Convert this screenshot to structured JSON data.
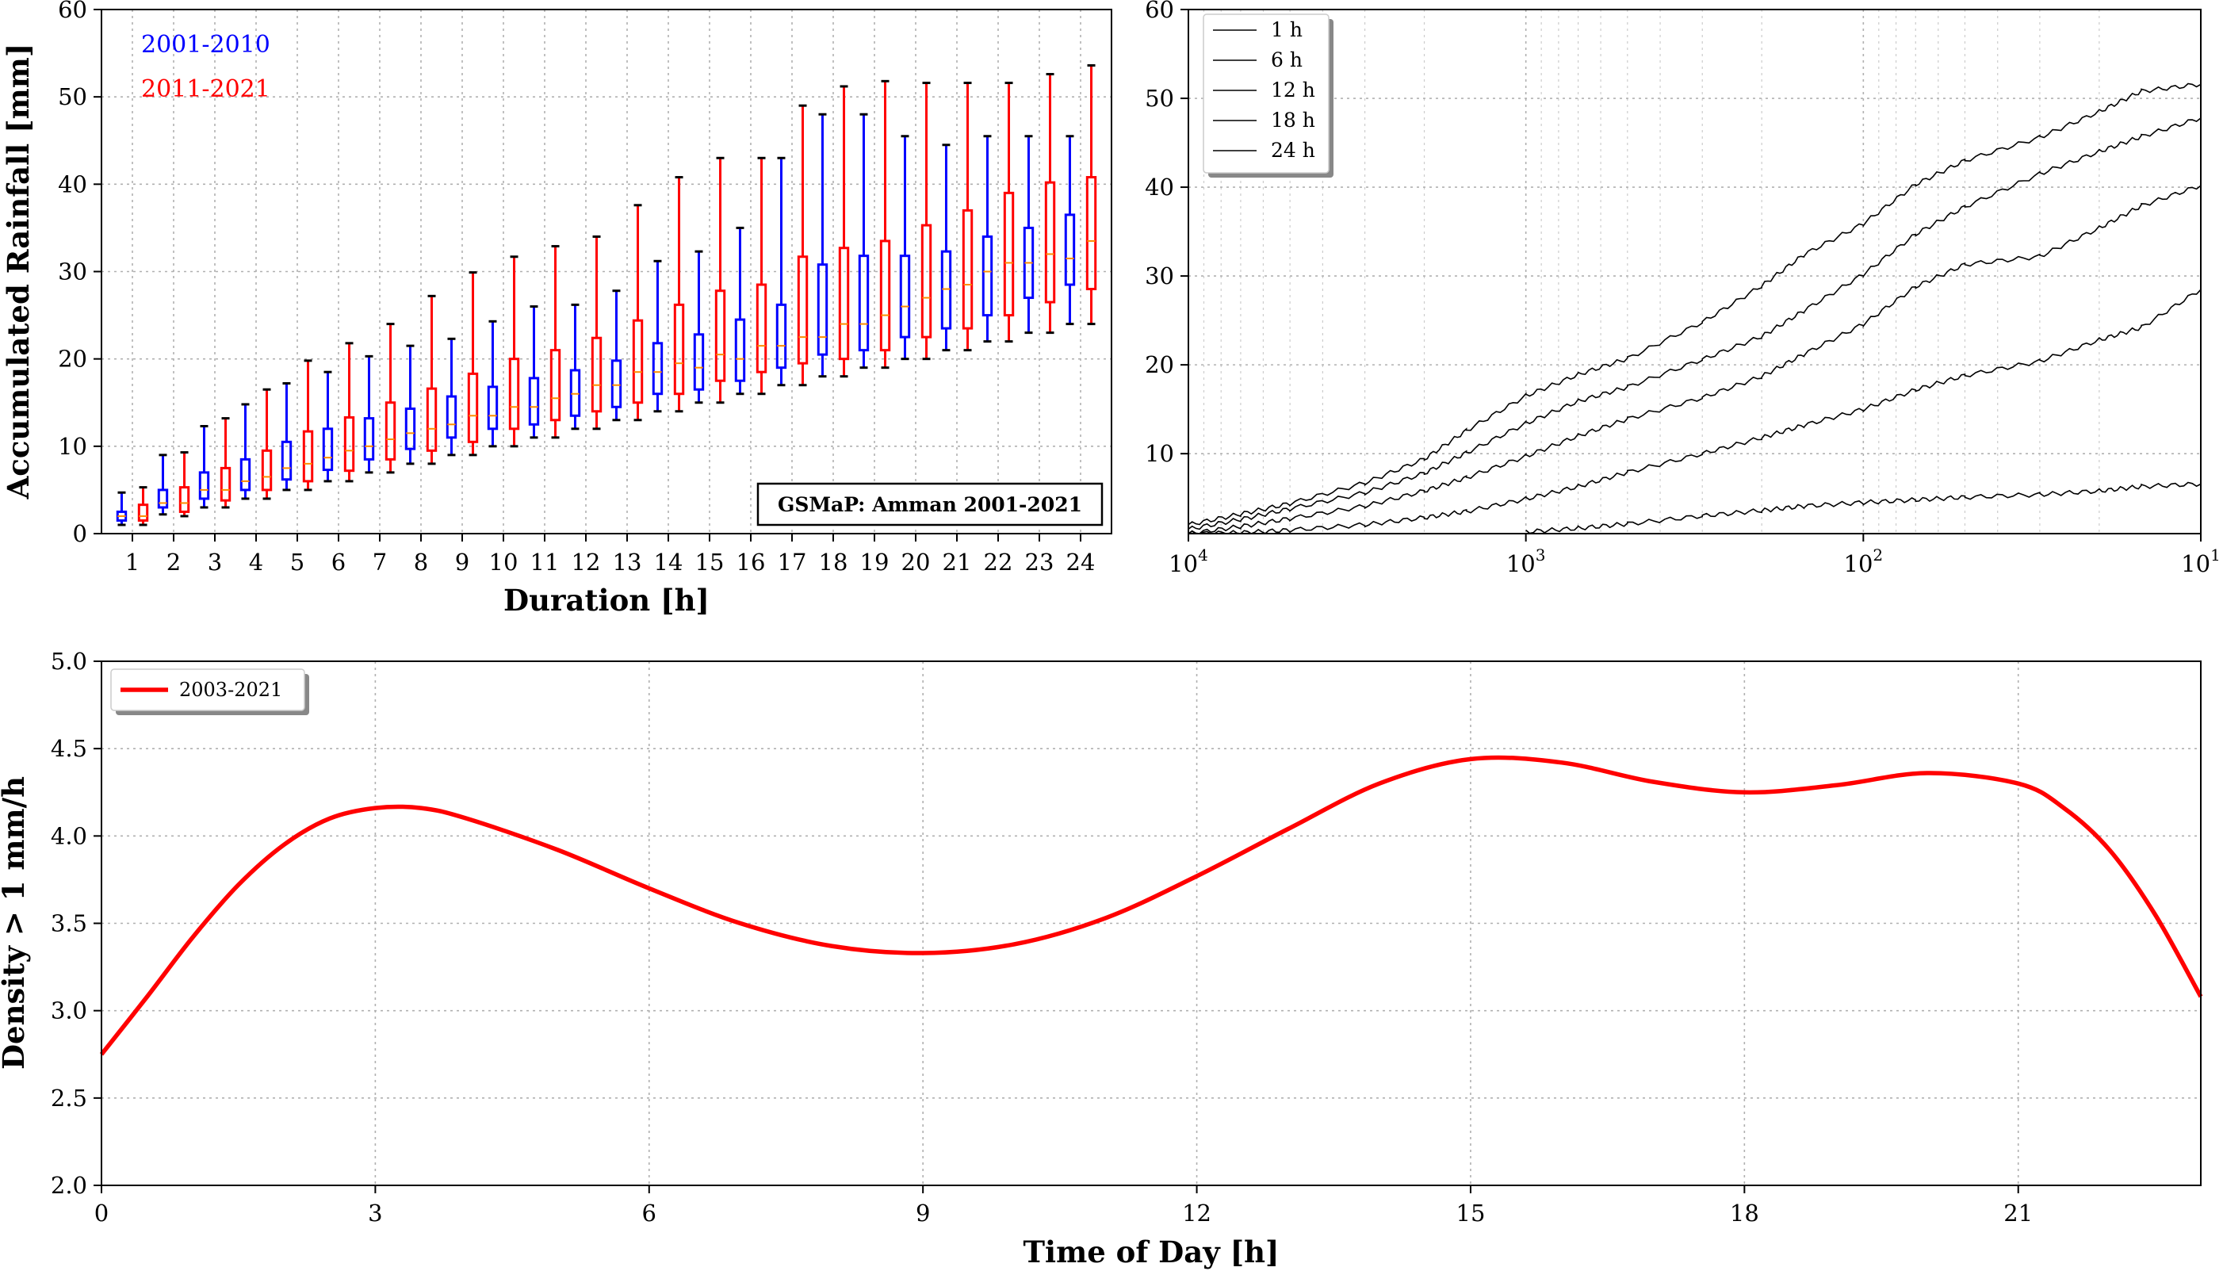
{
  "chart_data": [
    {
      "id": "boxplot",
      "type": "box",
      "xlabel": "Duration [h]",
      "ylabel": "Accumulated Rainfall [mm]",
      "ylim": [
        0,
        60
      ],
      "yticks": [
        0,
        10,
        20,
        30,
        40,
        50,
        60
      ],
      "categories": [
        "1",
        "2",
        "3",
        "4",
        "5",
        "6",
        "7",
        "8",
        "9",
        "10",
        "11",
        "12",
        "13",
        "14",
        "15",
        "16",
        "17",
        "18",
        "19",
        "20",
        "21",
        "22",
        "23",
        "24"
      ],
      "annotation": "GSMaP: Amman 2001-2021",
      "series": [
        {
          "name": "2001-2010",
          "color": "#0000ff",
          "whisker_low": [
            1,
            2.2,
            3,
            4,
            5,
            6,
            7,
            8,
            9,
            10,
            11,
            12,
            13,
            14,
            15,
            16,
            17,
            18,
            19,
            20,
            21,
            22,
            23,
            24
          ],
          "q1": [
            1.5,
            3,
            4,
            5,
            6.2,
            7.3,
            8.5,
            9.7,
            11,
            12,
            12.5,
            13.5,
            14.5,
            16,
            16.5,
            17.5,
            19,
            20.5,
            21,
            22.5,
            23.5,
            25,
            27,
            28.5
          ],
          "median": [
            2,
            3.5,
            5,
            6,
            7.5,
            8.7,
            10,
            11.5,
            12.5,
            13.5,
            14.5,
            16,
            17,
            18.5,
            19,
            20,
            21.5,
            22.5,
            24,
            26,
            28,
            30,
            31,
            31.5
          ],
          "q3": [
            2.5,
            5,
            7,
            8.5,
            10.5,
            12,
            13.2,
            14.3,
            15.7,
            16.8,
            17.8,
            18.7,
            19.8,
            21.8,
            22.8,
            24.5,
            26.2,
            30.8,
            31.8,
            31.8,
            32.3,
            34,
            35,
            36.5
          ],
          "whisker_high": [
            4.7,
            9,
            12.3,
            14.8,
            17.2,
            18.5,
            20.3,
            21.5,
            22.3,
            24.3,
            26,
            26.2,
            27.8,
            31.2,
            32.3,
            35,
            43,
            48,
            48,
            45.5,
            44.5,
            45.5,
            45.5,
            45.5
          ]
        },
        {
          "name": "2011-2021",
          "color": "#ff0000",
          "whisker_low": [
            1,
            2,
            3,
            4,
            5,
            6,
            7,
            8,
            9,
            10,
            11,
            12,
            13,
            14,
            15,
            16,
            17,
            18,
            19,
            20,
            21,
            22,
            23,
            24
          ],
          "q1": [
            1.5,
            2.5,
            3.8,
            5,
            6,
            7.2,
            8.5,
            9.5,
            10.5,
            12,
            13,
            14,
            15,
            16,
            17.5,
            18.5,
            19.5,
            20,
            21,
            22.5,
            23.5,
            25,
            26.5,
            28
          ],
          "median": [
            2,
            3.5,
            5,
            6.5,
            8,
            9.5,
            10.8,
            12,
            13.5,
            14.5,
            15.5,
            17,
            18.5,
            19.5,
            20.5,
            21.5,
            22.5,
            24,
            25,
            27,
            28.5,
            31,
            32,
            33.5
          ],
          "q3": [
            3.3,
            5.3,
            7.5,
            9.5,
            11.7,
            13.3,
            15,
            16.6,
            18.3,
            20,
            21,
            22.4,
            24.4,
            26.2,
            27.8,
            28.5,
            31.7,
            32.7,
            33.5,
            35.3,
            37,
            39,
            40.2,
            40.8
          ],
          "whisker_high": [
            5.3,
            9.3,
            13.2,
            16.5,
            19.8,
            21.8,
            24,
            27.2,
            29.9,
            31.7,
            32.9,
            34,
            37.6,
            40.8,
            43,
            43,
            49,
            51.2,
            51.8,
            51.6,
            51.6,
            51.6,
            52.6,
            53.6
          ]
        }
      ]
    },
    {
      "id": "exceedance",
      "type": "line",
      "xscale": "log",
      "xaxis_reversed": true,
      "xlim": [
        10000,
        10
      ],
      "xticks": [
        10000,
        1000,
        100,
        10
      ],
      "xtick_bases": [
        "10",
        "10",
        "10",
        "10"
      ],
      "xtick_exps": [
        "4",
        "3",
        "2",
        "1"
      ],
      "ylim": [
        1,
        60
      ],
      "yticks": [
        10,
        20,
        30,
        40,
        50,
        60
      ],
      "legend": "top-left",
      "x": [
        10000,
        7000,
        5000,
        3000,
        2000,
        1500,
        1000,
        700,
        500,
        300,
        200,
        150,
        100,
        70,
        50,
        30,
        20,
        15,
        10
      ],
      "series": [
        {
          "name": "1 h",
          "values": [
            null,
            null,
            null,
            null,
            null,
            null,
            1.2,
            1.6,
            2.1,
            3.0,
            3.6,
            4.1,
            4.5,
            4.8,
            5.1,
            5.4,
            5.8,
            6.3,
            6.6
          ]
        },
        {
          "name": "6 h",
          "values": [
            1.0,
            1.1,
            1.4,
            2.0,
            2.8,
            3.5,
            4.9,
            6.3,
            7.9,
            10.0,
            11.8,
            13.2,
            15.0,
            17.2,
            18.8,
            20.4,
            22.8,
            24.2,
            28.5
          ]
        },
        {
          "name": "12 h",
          "values": [
            1.0,
            1.8,
            2.7,
            4.1,
            5.8,
            7.3,
            9.7,
            12.0,
            13.9,
            16.3,
            18.7,
            21.2,
            24.6,
            28.8,
            31.3,
            32.2,
            35.4,
            37.9,
            40.2
          ]
        },
        {
          "name": "18 h",
          "values": [
            1.5,
            2.6,
            3.8,
            5.6,
            7.8,
            10.1,
            13.4,
            15.9,
            17.5,
            20.6,
            23.2,
            26.1,
            30.2,
            34.7,
            37.8,
            41.5,
            44.0,
            45.7,
            47.8
          ]
        },
        {
          "name": "24 h",
          "values": [
            2.0,
            3.2,
            4.4,
            6.7,
            9.4,
            12.6,
            16.5,
            18.9,
            20.7,
            24.8,
            28.9,
            32.4,
            35.9,
            40.3,
            43.0,
            45.6,
            48.5,
            50.8,
            51.6
          ]
        }
      ]
    },
    {
      "id": "diurnal",
      "type": "line",
      "xlabel": "Time of Day [h]",
      "ylabel": "Density > 1 mm/h",
      "xlim": [
        0,
        23
      ],
      "ylim": [
        2.0,
        5.0
      ],
      "xticks": [
        0,
        3,
        6,
        9,
        12,
        15,
        18,
        21
      ],
      "yticks": [
        "2.0",
        "2.5",
        "3.0",
        "3.5",
        "4.0",
        "4.5",
        "5.0"
      ],
      "legend": "top-left",
      "series": [
        {
          "name": "2003-2021",
          "color": "#ff0000",
          "x": [
            0,
            0.5,
            1,
            1.5,
            2,
            2.5,
            3,
            3.5,
            4,
            5,
            6,
            7,
            8,
            9,
            10,
            11,
            12,
            13,
            14,
            15,
            16,
            17,
            18,
            19,
            20,
            21,
            21.5,
            22,
            22.5,
            23
          ],
          "values": [
            2.75,
            3.08,
            3.42,
            3.72,
            3.95,
            4.1,
            4.16,
            4.16,
            4.1,
            3.92,
            3.7,
            3.5,
            3.37,
            3.33,
            3.38,
            3.53,
            3.77,
            4.04,
            4.3,
            4.44,
            4.42,
            4.31,
            4.25,
            4.29,
            4.36,
            4.3,
            4.16,
            3.92,
            3.55,
            3.08
          ]
        }
      ]
    }
  ]
}
